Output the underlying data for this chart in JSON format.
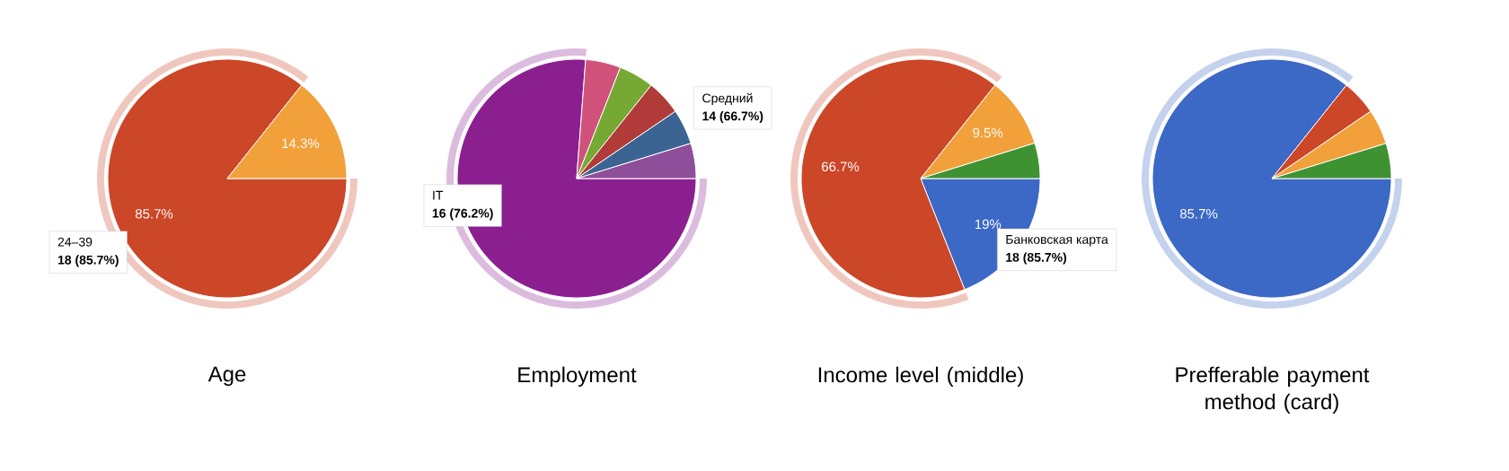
{
  "chart_data": [
    {
      "type": "pie",
      "title": "Age",
      "categories": [
        "24–39",
        null
      ],
      "values": [
        85.7,
        14.3
      ],
      "colors": [
        "#cc4628",
        "#f2a03a"
      ],
      "value_labels": [
        "85.7%",
        "14.3%"
      ],
      "annotations": [
        "18 (85.7%)"
      ]
    },
    {
      "type": "pie",
      "title": "Employment",
      "categories": [
        "IT",
        null,
        null,
        null,
        null,
        null
      ],
      "values": [
        76.2,
        4.76,
        4.76,
        4.76,
        4.76,
        4.76
      ],
      "colors": [
        "#8b1f90",
        "#d0517a",
        "#76a933",
        "#b13b38",
        "#3b6493",
        "#8e4e9a"
      ],
      "value_labels": [
        null,
        null,
        null,
        null,
        null,
        null
      ],
      "annotations": [
        "16 (76.2%)"
      ]
    },
    {
      "type": "pie",
      "title": "Income level (middle)",
      "categories": [
        null,
        "Средний",
        null,
        null
      ],
      "values": [
        19,
        66.7,
        9.5,
        4.8
      ],
      "colors": [
        "#3c68c6",
        "#cc4628",
        "#f2a03a",
        "#3f9232"
      ],
      "value_labels": [
        "19%",
        "66.7%",
        "9.5%",
        null
      ],
      "annotations": [
        "14 (66.7%)"
      ]
    },
    {
      "type": "pie",
      "title": "Prefferable payment method (card)",
      "categories": [
        "Банковская карта",
        null,
        null,
        null
      ],
      "values": [
        85.7,
        4.76,
        4.76,
        4.76
      ],
      "colors": [
        "#3c68c6",
        "#cc4628",
        "#f2a03a",
        "#3f9232"
      ],
      "value_labels": [
        "85.7%",
        null,
        null,
        null
      ],
      "annotations": [
        "18 (85.7%)"
      ]
    }
  ]
}
